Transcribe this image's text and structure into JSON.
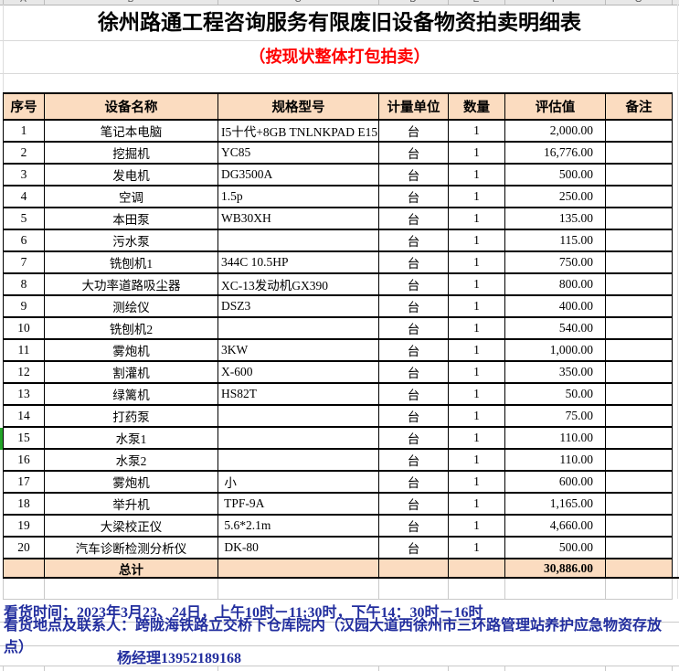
{
  "spreadsheet": {
    "column_letters": [
      "A",
      "B",
      "C",
      "D",
      "E",
      "F",
      "G"
    ],
    "title": "徐州路通工程咨询服务有限废旧设备物资拍卖明细表",
    "subtitle": "（按现状整体打包拍卖）",
    "colors": {
      "header_bg": "#fbdcc0",
      "subtitle_red": "#ff0000",
      "footer_blue": "#222e9e",
      "green_marker": "#23a428",
      "table_border": "#000000",
      "gridline_gray": "#c9c9c9"
    },
    "table": {
      "headers": [
        "序号",
        "设备名称",
        "规格型号",
        "计量单位",
        "数量",
        "评估值",
        "备注"
      ],
      "rows": [
        {
          "no": "1",
          "name": "笔记本电脑",
          "spec": "I5十代+8GB TNLNKPAD E15",
          "unit": "台",
          "qty": "1",
          "value": "2,000.00",
          "note": ""
        },
        {
          "no": "2",
          "name": "挖掘机",
          "spec": "YC85",
          "unit": "台",
          "qty": "1",
          "value": "16,776.00",
          "note": ""
        },
        {
          "no": "3",
          "name": "发电机",
          "spec": "DG3500A",
          "unit": "台",
          "qty": "1",
          "value": "500.00",
          "note": ""
        },
        {
          "no": "4",
          "name": "空调",
          "spec": "1.5p",
          "unit": "台",
          "qty": "1",
          "value": "250.00",
          "note": ""
        },
        {
          "no": "5",
          "name": "本田泵",
          "spec": "WB30XH",
          "unit": "台",
          "qty": "1",
          "value": "135.00",
          "note": ""
        },
        {
          "no": "6",
          "name": "污水泵",
          "spec": "",
          "unit": "台",
          "qty": "1",
          "value": "115.00",
          "note": ""
        },
        {
          "no": "7",
          "name": "铣刨机1",
          "spec": "344C 10.5HP",
          "unit": "台",
          "qty": "1",
          "value": "750.00",
          "note": ""
        },
        {
          "no": "8",
          "name": "大功率道路吸尘器",
          "spec": "XC-13发动机GX390",
          "unit": "台",
          "qty": "1",
          "value": "800.00",
          "note": ""
        },
        {
          "no": "9",
          "name": "测绘仪",
          "spec": "DSZ3",
          "unit": "台",
          "qty": "1",
          "value": "400.00",
          "note": ""
        },
        {
          "no": "10",
          "name": "铣刨机2",
          "spec": "",
          "unit": "台",
          "qty": "1",
          "value": "540.00",
          "note": ""
        },
        {
          "no": "11",
          "name": "雾炮机",
          "spec": "3KW",
          "unit": "台",
          "qty": "1",
          "value": "1,000.00",
          "note": ""
        },
        {
          "no": "12",
          "name": "割灌机",
          "spec": "X-600",
          "unit": "台",
          "qty": "1",
          "value": "350.00",
          "note": ""
        },
        {
          "no": "13",
          "name": "绿篱机",
          "spec": "HS82T",
          "unit": "台",
          "qty": "1",
          "value": "50.00",
          "note": ""
        },
        {
          "no": "14",
          "name": "打药泵",
          "spec": "",
          "unit": "台",
          "qty": "1",
          "value": "75.00",
          "note": ""
        },
        {
          "no": "15",
          "name": "水泵1",
          "spec": "",
          "unit": "台",
          "qty": "1",
          "value": "110.00",
          "note": ""
        },
        {
          "no": "16",
          "name": "水泵2",
          "spec": "",
          "unit": "台",
          "qty": "1",
          "value": "110.00",
          "note": ""
        },
        {
          "no": "17",
          "name": "雾炮机",
          "spec": " 小",
          "unit": "台",
          "qty": "1",
          "value": "600.00",
          "note": ""
        },
        {
          "no": "18",
          "name": "举升机",
          "spec": " TPF-9A",
          "unit": "台",
          "qty": "1",
          "value": "1,165.00",
          "note": ""
        },
        {
          "no": "19",
          "name": "大梁校正仪",
          "spec": " 5.6*2.1m",
          "unit": "台",
          "qty": "1",
          "value": "4,660.00",
          "note": ""
        },
        {
          "no": "20",
          "name": "汽车诊断检测分析仪",
          "spec": " DK-80",
          "unit": "台",
          "qty": "1",
          "value": "500.00",
          "note": ""
        }
      ],
      "total": {
        "label": "总计",
        "value": "30,886.00"
      }
    },
    "footer": {
      "line1": "看货时间：2023年3月23、24日，上午10时－11:30时，下午14：30时－16时",
      "line2": "看货地点及联系人：跨陇海铁路立交桥下仓库院内（汉园大道西徐州市三环路管理站养护应急物资存放点）",
      "line3": "杨经理13952189168"
    }
  }
}
